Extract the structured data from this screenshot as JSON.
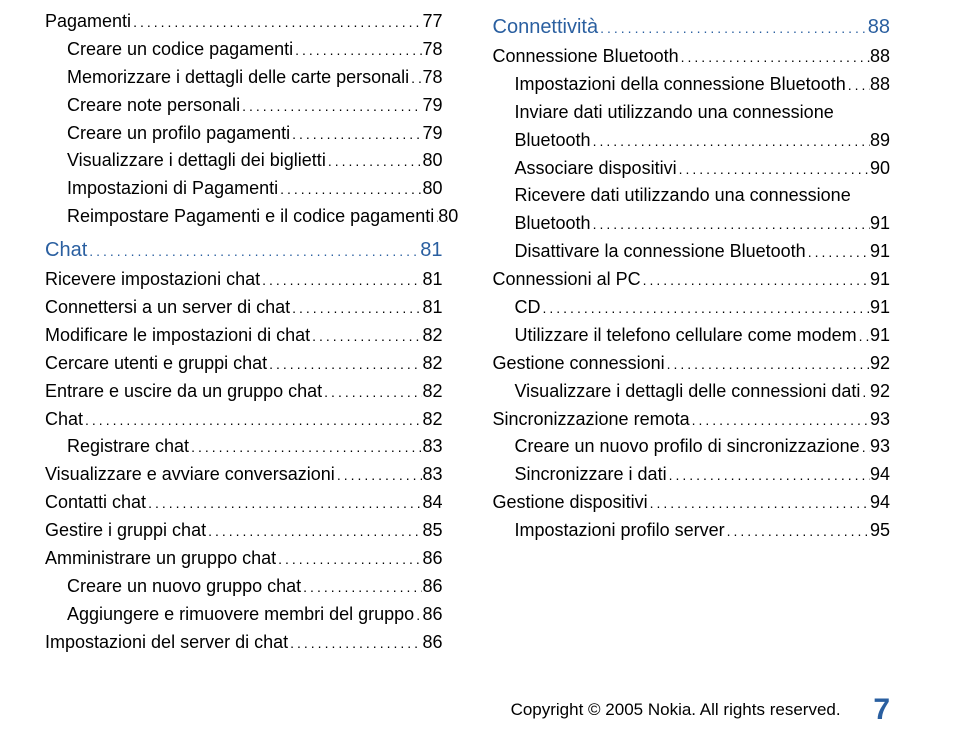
{
  "colors": {
    "section": "#2a5fa0",
    "text": "#000000",
    "background": "#ffffff"
  },
  "leftColumn": [
    {
      "label": "Pagamenti",
      "page": "77",
      "indent": 0
    },
    {
      "label": "Creare un codice pagamenti",
      "page": "78",
      "indent": 1
    },
    {
      "label": "Memorizzare i dettagli delle carte personali",
      "page": "78",
      "indent": 1
    },
    {
      "label": "Creare note personali",
      "page": "79",
      "indent": 1
    },
    {
      "label": "Creare un profilo pagamenti",
      "page": "79",
      "indent": 1
    },
    {
      "label": "Visualizzare i dettagli dei biglietti",
      "page": "80",
      "indent": 1
    },
    {
      "label": "Impostazioni di Pagamenti",
      "page": "80",
      "indent": 1
    },
    {
      "label": "Reimpostare Pagamenti e il codice pagamenti",
      "page": "80",
      "indent": 1,
      "nodots": true
    },
    {
      "label": "Chat",
      "page": "81",
      "indent": 0,
      "section": true
    },
    {
      "label": "Ricevere impostazioni chat",
      "page": "81",
      "indent": 0
    },
    {
      "label": "Connettersi a un server di chat",
      "page": "81",
      "indent": 0
    },
    {
      "label": "Modificare le impostazioni di chat",
      "page": "82",
      "indent": 0
    },
    {
      "label": "Cercare utenti e gruppi chat",
      "page": "82",
      "indent": 0
    },
    {
      "label": "Entrare e uscire da un gruppo chat",
      "page": "82",
      "indent": 0
    },
    {
      "label": "Chat",
      "page": "82",
      "indent": 0
    },
    {
      "label": "Registrare chat",
      "page": "83",
      "indent": 1
    },
    {
      "label": "Visualizzare e avviare conversazioni",
      "page": "83",
      "indent": 0
    },
    {
      "label": "Contatti chat",
      "page": "84",
      "indent": 0
    },
    {
      "label": "Gestire i gruppi chat",
      "page": "85",
      "indent": 0
    },
    {
      "label": "Amministrare un gruppo chat",
      "page": "86",
      "indent": 0
    },
    {
      "label": "Creare un nuovo gruppo chat",
      "page": "86",
      "indent": 1
    },
    {
      "label": "Aggiungere e rimuovere membri del gruppo",
      "page": "86",
      "indent": 1
    },
    {
      "label": "Impostazioni del server di chat",
      "page": "86",
      "indent": 0
    }
  ],
  "rightColumn": [
    {
      "label": "Connettività",
      "page": "88",
      "indent": 0,
      "section": true
    },
    {
      "label": "Connessione Bluetooth",
      "page": "88",
      "indent": 0
    },
    {
      "label": "Impostazioni della connessione Bluetooth",
      "page": "88",
      "indent": 1
    },
    {
      "label": "Inviare dati utilizzando una connessione",
      "indent": 1,
      "continuation": true
    },
    {
      "label": "Bluetooth",
      "page": "89",
      "indent": 1
    },
    {
      "label": "Associare dispositivi",
      "page": "90",
      "indent": 1
    },
    {
      "label": "Ricevere dati utilizzando una connessione",
      "indent": 1,
      "continuation": true
    },
    {
      "label": "Bluetooth",
      "page": "91",
      "indent": 1
    },
    {
      "label": "Disattivare la connessione Bluetooth",
      "page": "91",
      "indent": 1
    },
    {
      "label": "Connessioni al PC",
      "page": "91",
      "indent": 0
    },
    {
      "label": "CD",
      "page": "91",
      "indent": 1
    },
    {
      "label": "Utilizzare il telefono cellulare come modem",
      "page": "91",
      "indent": 1
    },
    {
      "label": "Gestione connessioni",
      "page": "92",
      "indent": 0
    },
    {
      "label": "Visualizzare i dettagli delle connessioni dati",
      "page": "92",
      "indent": 1
    },
    {
      "label": "Sincronizzazione remota",
      "page": "93",
      "indent": 0
    },
    {
      "label": "Creare un nuovo profilo di sincronizzazione",
      "page": "93",
      "indent": 1
    },
    {
      "label": "Sincronizzare i dati",
      "page": "94",
      "indent": 1
    },
    {
      "label": "Gestione dispositivi",
      "page": "94",
      "indent": 0
    },
    {
      "label": "Impostazioni profilo server",
      "page": "95",
      "indent": 1
    }
  ],
  "footer": {
    "copyright": "Copyright © 2005 Nokia. All rights reserved.",
    "pageNumber": "7"
  }
}
